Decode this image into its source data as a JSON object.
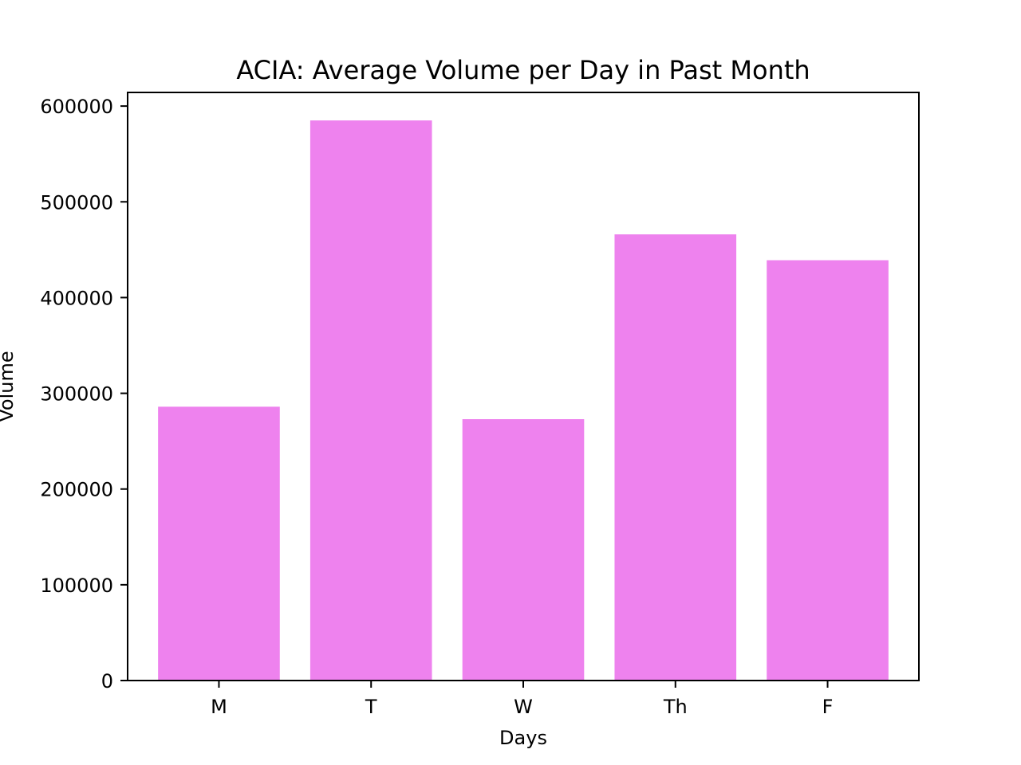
{
  "chart_data": {
    "type": "bar",
    "title": "ACIA: Average Volume per Day in Past Month",
    "xlabel": "Days",
    "ylabel": "Volume",
    "categories": [
      "M",
      "T",
      "W",
      "Th",
      "F"
    ],
    "values": [
      286000,
      585000,
      273000,
      466000,
      439000
    ],
    "ylim": [
      0,
      614250
    ],
    "yticks": [
      0,
      100000,
      200000,
      300000,
      400000,
      500000,
      600000
    ],
    "ytick_labels": [
      "0",
      "100000",
      "200000",
      "300000",
      "400000",
      "500000",
      "600000"
    ],
    "bar_color": "#ee82ee",
    "grid": false,
    "legend": "none"
  }
}
